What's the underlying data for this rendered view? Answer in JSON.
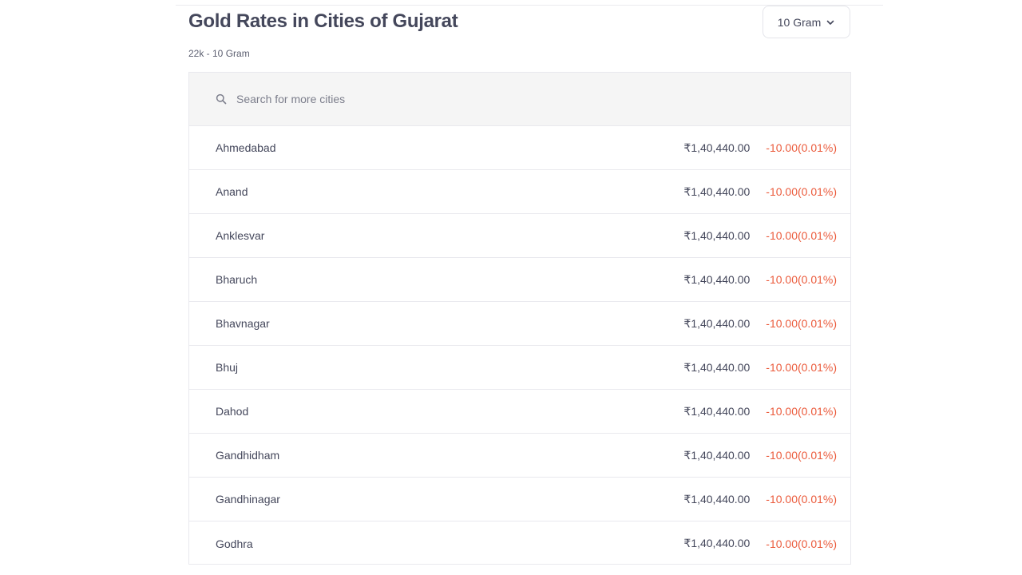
{
  "header": {
    "title": "Gold Rates in Cities of Gujarat",
    "subtitle": "22k - 10 Gram",
    "unit_select": {
      "selected": "10 Gram"
    }
  },
  "search": {
    "placeholder": "Search for more cities",
    "value": ""
  },
  "colors": {
    "negative_change": "#eb5b3c",
    "text": "#44475b",
    "search_background": "#f5f5f5"
  },
  "rows": [
    {
      "city": "Ahmedabad",
      "price": "₹1,40,440.00",
      "change": "-10.00(0.01%)"
    },
    {
      "city": "Anand",
      "price": "₹1,40,440.00",
      "change": "-10.00(0.01%)"
    },
    {
      "city": "Anklesvar",
      "price": "₹1,40,440.00",
      "change": "-10.00(0.01%)"
    },
    {
      "city": "Bharuch",
      "price": "₹1,40,440.00",
      "change": "-10.00(0.01%)"
    },
    {
      "city": "Bhavnagar",
      "price": "₹1,40,440.00",
      "change": "-10.00(0.01%)"
    },
    {
      "city": "Bhuj",
      "price": "₹1,40,440.00",
      "change": "-10.00(0.01%)"
    },
    {
      "city": "Dahod",
      "price": "₹1,40,440.00",
      "change": "-10.00(0.01%)"
    },
    {
      "city": "Gandhidham",
      "price": "₹1,40,440.00",
      "change": "-10.00(0.01%)"
    },
    {
      "city": "Gandhinagar",
      "price": "₹1,40,440.00",
      "change": "-10.00(0.01%)"
    },
    {
      "city": "Godhra",
      "price": "₹1,40,440.00",
      "change": "-10.00(0.01%)"
    }
  ]
}
